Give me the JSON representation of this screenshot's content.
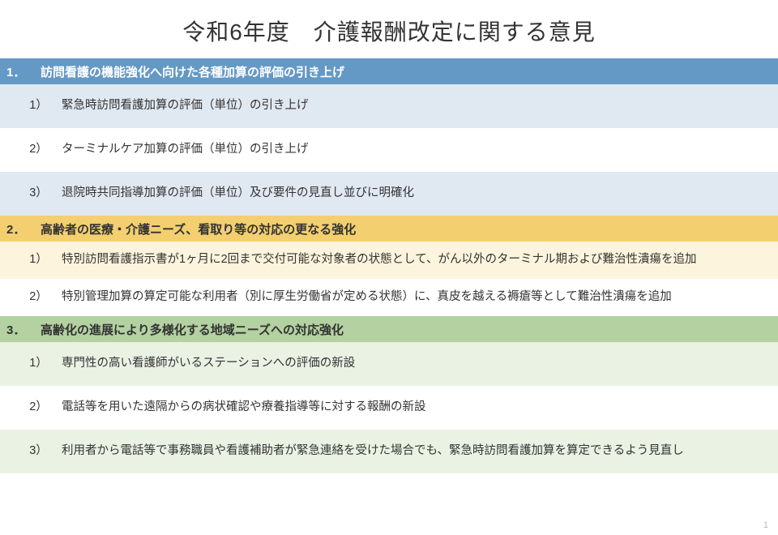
{
  "title": "令和6年度　介護報酬改定に関する意見",
  "page_number": "1",
  "colors": {
    "sec1_header": "#6599c5",
    "sec1_alt": "#e0e8f1",
    "sec2_header": "#f3cf6f",
    "sec2_alt": "#fdf4dd",
    "sec3_header": "#b3d1a1",
    "sec3_alt": "#eaf2e4",
    "background": "#ffffff",
    "text": "#333333",
    "header1_text": "#ffffff"
  },
  "typography": {
    "title_fontsize": 28,
    "section_fontsize": 15,
    "item_fontsize": 14.5
  },
  "sections": [
    {
      "number": "1．",
      "title": "訪問看護の機能強化へ向けた各種加算の評価の引き上げ",
      "items": [
        {
          "num": "1）",
          "text": "緊急時訪問看護加算の評価（単位）の引き上げ"
        },
        {
          "num": "2）",
          "text": "ターミナルケア加算の評価（単位）の引き上げ"
        },
        {
          "num": "3）",
          "text": "退院時共同指導加算の評価（単位）及び要件の見直し並びに明確化"
        }
      ]
    },
    {
      "number": "2．",
      "title": "高齢者の医療・介護ニーズ、看取り等の対応の更なる強化",
      "items": [
        {
          "num": "1）",
          "text": "特別訪問看護指示書が1ヶ月に2回まで交付可能な対象者の状態として、がん以外のターミナル期および難治性潰瘍を追加"
        },
        {
          "num": "2）",
          "text": "特別管理加算の算定可能な利用者（別に厚生労働省が定める状態）に、真皮を越える褥瘡等として難治性潰瘍を追加"
        }
      ]
    },
    {
      "number": "3．",
      "title": "高齢化の進展により多様化する地域ニーズへの対応強化",
      "items": [
        {
          "num": "1）",
          "text": "専門性の高い看護師がいるステーションへの評価の新設"
        },
        {
          "num": "2）",
          "text": "電話等を用いた遠隔からの病状確認や療養指導等に対する報酬の新設"
        },
        {
          "num": "3）",
          "text": "利用者から電話等で事務職員や看護補助者が緊急連絡を受けた場合でも、緊急時訪問看護加算を算定できるよう見直し"
        }
      ]
    }
  ]
}
